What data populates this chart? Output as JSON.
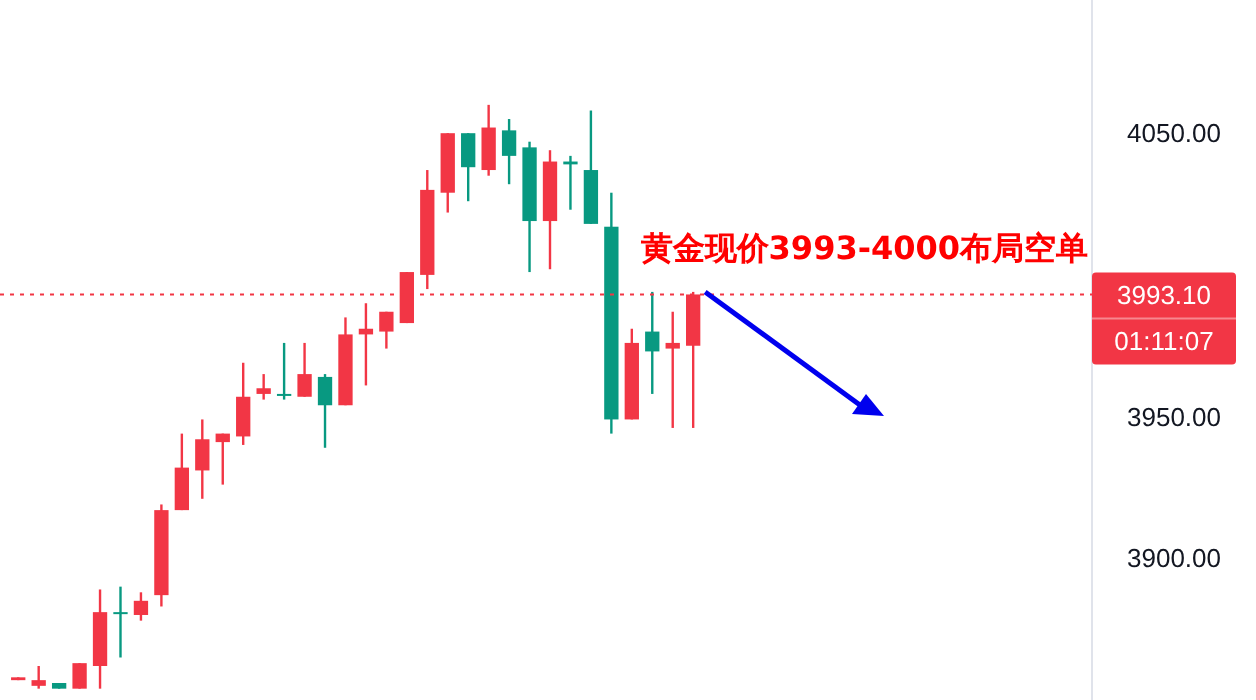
{
  "chart_data": {
    "type": "candlestick",
    "categories": [
      null,
      null,
      null,
      null,
      null,
      null,
      null,
      null,
      null,
      null,
      null,
      null,
      null,
      null,
      null,
      null,
      null,
      null,
      null,
      null,
      null,
      null,
      null,
      null,
      null,
      null,
      null,
      null,
      null,
      null,
      null,
      null,
      null,
      null,
      null,
      null,
      null,
      null,
      null,
      null,
      null,
      null,
      null,
      null,
      null,
      null,
      null,
      null,
      null,
      null,
      null,
      null,
      null
    ],
    "ohlc": [
      [
        3857,
        3858,
        3857,
        3858
      ],
      [
        3855,
        3862,
        3854,
        3857
      ],
      [
        3856,
        3856,
        3854,
        3854
      ],
      [
        3854,
        3863,
        3854,
        3863
      ],
      [
        3862,
        3889,
        3854,
        3881
      ],
      [
        3881,
        3890,
        3865,
        3880.5
      ],
      [
        3880,
        3888,
        3878,
        3885
      ],
      [
        3887,
        3919,
        3883,
        3917
      ],
      [
        3917,
        3944,
        3917,
        3932
      ],
      [
        3931,
        3949,
        3921,
        3942
      ],
      [
        3941,
        3944,
        3926,
        3944
      ],
      [
        3943,
        3969,
        3940,
        3957
      ],
      [
        3958,
        3965,
        3956,
        3960
      ],
      [
        3958,
        3976,
        3956,
        3957.5
      ],
      [
        3957,
        3976,
        3957,
        3965
      ],
      [
        3964,
        3965,
        3939,
        3954
      ],
      [
        3954,
        3985,
        3954,
        3979
      ],
      [
        3979,
        3990,
        3961,
        3981
      ],
      [
        3980,
        3987,
        3974,
        3987
      ],
      [
        3983,
        4001,
        3983,
        4001
      ],
      [
        4000,
        4037,
        3995,
        4030
      ],
      [
        4029,
        4050,
        4022,
        4050
      ],
      [
        4050,
        4050,
        4026,
        4038
      ],
      [
        4037,
        4060,
        4035,
        4052
      ],
      [
        4051,
        4055,
        4032,
        4042
      ],
      [
        4045,
        4047,
        4001,
        4019
      ],
      [
        4019,
        4044,
        4002,
        4040
      ],
      [
        4040,
        4042,
        4023,
        4039
      ],
      [
        4037,
        4058,
        4018,
        4018
      ],
      [
        4017,
        4029,
        3944,
        3949
      ],
      [
        3949,
        3981,
        3949,
        3976
      ],
      [
        3980,
        3994,
        3958,
        3973
      ],
      [
        3974,
        3987,
        3946,
        3976
      ],
      [
        3975,
        3994,
        3946,
        3993.1
      ],
      null,
      null,
      null,
      null,
      null,
      null,
      null,
      null,
      null,
      null,
      null,
      null,
      null,
      null,
      null,
      null,
      null,
      null,
      null
    ],
    "colors": [
      "#f23645",
      "#f23645",
      "#089981",
      "#f23645",
      "#f23645",
      "#089981",
      "#f23645",
      "#f23645",
      "#f23645",
      "#f23645",
      "#f23645",
      "#f23645",
      "#f23645",
      "#089981",
      "#f23645",
      "#089981",
      "#f23645",
      "#f23645",
      "#f23645",
      "#f23645",
      "#f23645",
      "#f23645",
      "#089981",
      "#f23645",
      "#089981",
      "#089981",
      "#f23645",
      "#089981",
      "#089981",
      "#089981",
      "#f23645",
      "#089981",
      "#f23645",
      "#f23645",
      null,
      null,
      null,
      null,
      null,
      null,
      null,
      null,
      null,
      null,
      null,
      null,
      null,
      null,
      null,
      null,
      null,
      null,
      null
    ],
    "ylim": [
      3850,
      4097
    ],
    "yticks": [
      {
        "value": 3900,
        "label": "3900.00"
      },
      {
        "value": 3950,
        "label": "3950.00"
      },
      {
        "value": 4050,
        "label": "4050.00"
      }
    ],
    "ref_lines": [
      {
        "axis": "y",
        "value": 3993.1,
        "label": "3993.10",
        "color": "#f23645",
        "line_style": "dotted"
      }
    ],
    "annotations": [
      "黄金现价3993-4000布局空单",
      "01:11:07"
    ]
  }
}
